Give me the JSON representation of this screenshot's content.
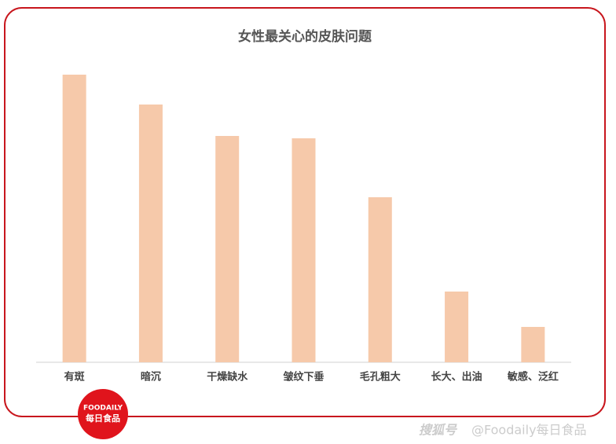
{
  "chart_data": {
    "type": "bar",
    "title": "女性最关心的皮肤问题",
    "categories": [
      "有斑",
      "暗沉",
      "干燥缺水",
      "皱纹下垂",
      "毛孔粗大",
      "长大、出油",
      "敏感、泛红"
    ],
    "values": [
      366,
      328,
      288,
      285,
      210,
      90,
      45
    ],
    "color": "#f6c9aa",
    "ylim": [
      0,
      400
    ]
  },
  "logo": {
    "brand": "FOODAILY",
    "name": "每日食品"
  },
  "footer": {
    "platform": "搜狐号",
    "account": "@Foodaily每日食品"
  }
}
